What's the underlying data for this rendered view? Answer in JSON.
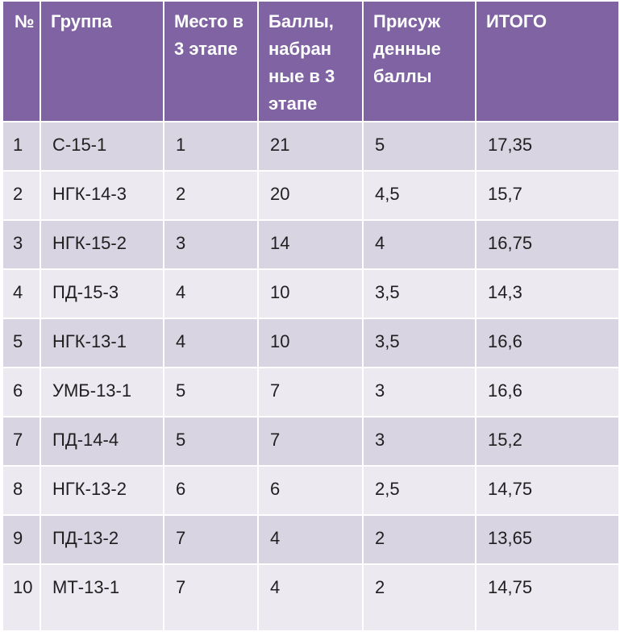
{
  "table": {
    "headers": {
      "num": "№",
      "group": "Группа",
      "place": "Место в 3 этапе",
      "points": "Баллы, набран ные в 3 этапе",
      "awarded": "Присуж денные баллы",
      "total": "ИТОГО"
    },
    "rows": [
      {
        "num": "1",
        "group": "С-15-1",
        "place": "1",
        "points": "21",
        "awarded": "5",
        "total": "17,35"
      },
      {
        "num": "2",
        "group": "НГК-14-3",
        "place": "2",
        "points": "20",
        "awarded": "4,5",
        "total": "15,7"
      },
      {
        "num": "3",
        "group": "НГК-15-2",
        "place": "3",
        "points": "14",
        "awarded": "4",
        "total": "16,75"
      },
      {
        "num": "4",
        "group": "ПД-15-3",
        "place": "4",
        "points": "10",
        "awarded": "3,5",
        "total": "14,3"
      },
      {
        "num": "5",
        "group": "НГК-13-1",
        "place": "4",
        "points": "10",
        "awarded": "3,5",
        "total": "16,6"
      },
      {
        "num": "6",
        "group": "УМБ-13-1",
        "place": "5",
        "points": "7",
        "awarded": "3",
        "total": "16,6"
      },
      {
        "num": "7",
        "group": "ПД-14-4",
        "place": "5",
        "points": "7",
        "awarded": "3",
        "total": "15,2"
      },
      {
        "num": "8",
        "group": "НГК-13-2",
        "place": "6",
        "points": "6",
        "awarded": "2,5",
        "total": "14,75"
      },
      {
        "num": "9",
        "group": "ПД-13-2",
        "place": "7",
        "points": "4",
        "awarded": "2",
        "total": "13,65"
      },
      {
        "num": "10",
        "group": "МТ-13-1",
        "place": "7",
        "points": "4",
        "awarded": "2",
        "total": "14,75"
      }
    ]
  },
  "colors": {
    "header_bg": "#7f63a2",
    "row_odd_bg": "#d8d4e2",
    "row_even_bg": "#ece9f1"
  }
}
